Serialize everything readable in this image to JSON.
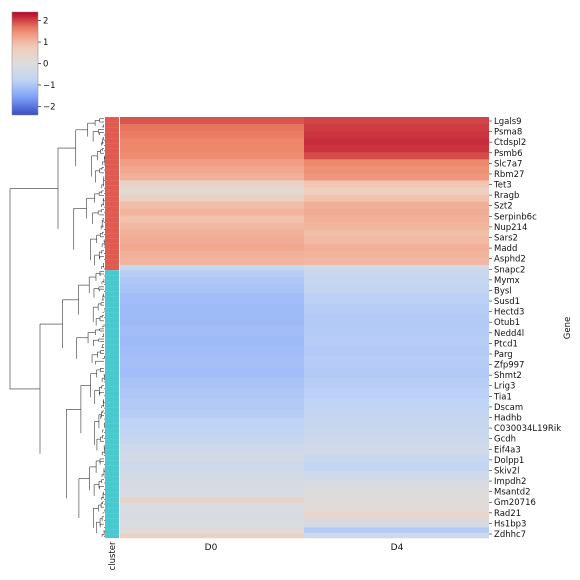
{
  "chart_data": {
    "type": "heatmap",
    "title": "",
    "xlabel": "",
    "ylabel": "Gene",
    "columns": [
      "D0",
      "D4"
    ],
    "annotation_label": "cluster",
    "cluster_colors": [
      "#e05a4f",
      "#47c9cf"
    ],
    "cluster_boundary_fraction": 0.364,
    "colorbar": {
      "vmin": -2.4,
      "vmax": 2.4,
      "ticks": [
        2,
        1,
        0,
        -1,
        -2
      ],
      "tick_labels": [
        "2",
        "1",
        "0",
        "−1",
        "−2"
      ],
      "cmap": "coolwarm",
      "colors": [
        "#3b4cc0",
        "#7b9ff9",
        "#c0d4f5",
        "#dddddd",
        "#f2cbb7",
        "#ee8468",
        "#b40426"
      ]
    },
    "gene_labels": [
      "Lgals9",
      "Psma8",
      "Ctdspl2",
      "Psmb6",
      "Slc7a7",
      "Rbm27",
      "Tet3",
      "Rragb",
      "Szt2",
      "Serpinb6c",
      "Nup214",
      "Sars2",
      "Madd",
      "Asphd2",
      "Snapc2",
      "Mymx",
      "Bysl",
      "Susd1",
      "Hectd3",
      "Otub1",
      "Nedd4l",
      "Ptcd1",
      "Parg",
      "Zfp997",
      "Shmt2",
      "Lrig3",
      "Tia1",
      "Dscam",
      "Hadhb",
      "C030034L19Rik",
      "Gcdh",
      "Eif4a3",
      "Dolpp1",
      "Skiv2l",
      "Impdh2",
      "Msantd2",
      "Gm20716",
      "Rad21",
      "Hs1bp3",
      "Zdhhc7"
    ],
    "row_blocks": [
      {
        "n": 4,
        "d0": 1.9,
        "d4": 2.0
      },
      {
        "n": 4,
        "d0": 1.7,
        "d4": 2.05
      },
      {
        "n": 4,
        "d0": 1.65,
        "d4": 2.1
      },
      {
        "n": 4,
        "d0": 1.6,
        "d4": 2.15
      },
      {
        "n": 4,
        "d0": 1.55,
        "d4": 2.1
      },
      {
        "n": 4,
        "d0": 1.5,
        "d4": 1.95
      },
      {
        "n": 4,
        "d0": 1.3,
        "d4": 1.55
      },
      {
        "n": 4,
        "d0": 1.2,
        "d4": 1.45
      },
      {
        "n": 4,
        "d0": 1.1,
        "d4": 1.4
      },
      {
        "n": 4,
        "d0": 0.45,
        "d4": 0.85
      },
      {
        "n": 4,
        "d0": 0.2,
        "d4": 0.6
      },
      {
        "n": 4,
        "d0": 0.55,
        "d4": 0.9
      },
      {
        "n": 4,
        "d0": 0.95,
        "d4": 1.1
      },
      {
        "n": 4,
        "d0": 1.05,
        "d4": 1.15
      },
      {
        "n": 4,
        "d0": 0.9,
        "d4": 1.1
      },
      {
        "n": 4,
        "d0": 1.0,
        "d4": 1.05
      },
      {
        "n": 4,
        "d0": 1.1,
        "d4": 0.95
      },
      {
        "n": 4,
        "d0": 1.15,
        "d4": 1.0
      },
      {
        "n": 4,
        "d0": 1.2,
        "d4": 1.1
      },
      {
        "n": 4,
        "d0": 1.1,
        "d4": 1.05
      },
      {
        "n": 4,
        "d0": 1.05,
        "d4": 1.0
      },
      {
        "n": 3,
        "d0": -0.6,
        "d4": -0.3
      },
      {
        "n": 4,
        "d0": -0.9,
        "d4": -0.55
      },
      {
        "n": 4,
        "d0": -1.0,
        "d4": -0.65
      },
      {
        "n": 5,
        "d0": -1.05,
        "d4": -0.7
      },
      {
        "n": 6,
        "d0": -1.15,
        "d4": -0.85
      },
      {
        "n": 6,
        "d0": -1.2,
        "d4": -0.9
      },
      {
        "n": 6,
        "d0": -1.2,
        "d4": -0.95
      },
      {
        "n": 6,
        "d0": -1.15,
        "d4": -0.95
      },
      {
        "n": 6,
        "d0": -1.2,
        "d4": -0.9
      },
      {
        "n": 6,
        "d0": -1.15,
        "d4": -0.95
      },
      {
        "n": 6,
        "d0": -1.1,
        "d4": -0.9
      },
      {
        "n": 6,
        "d0": -1.15,
        "d4": -0.95
      },
      {
        "n": 6,
        "d0": -1.05,
        "d4": -0.9
      },
      {
        "n": 6,
        "d0": -1.0,
        "d4": -0.85
      },
      {
        "n": 6,
        "d0": -0.95,
        "d4": -0.8
      },
      {
        "n": 5,
        "d0": -0.9,
        "d4": -0.7
      },
      {
        "n": 5,
        "d0": -0.8,
        "d4": -0.6
      },
      {
        "n": 5,
        "d0": -0.75,
        "d4": -0.55
      },
      {
        "n": 5,
        "d0": -0.6,
        "d4": -0.45
      },
      {
        "n": 5,
        "d0": -0.4,
        "d4": -0.35
      },
      {
        "n": 5,
        "d0": -0.25,
        "d4": -0.55
      },
      {
        "n": 5,
        "d0": -0.45,
        "d4": -0.7
      },
      {
        "n": 5,
        "d0": -0.3,
        "d4": -0.4
      },
      {
        "n": 5,
        "d0": -0.2,
        "d4": -0.15
      },
      {
        "n": 5,
        "d0": -0.15,
        "d4": 0.05
      },
      {
        "n": 3,
        "d0": 0.45,
        "d4": 0.1
      },
      {
        "n": 5,
        "d0": -0.1,
        "d4": 0.15
      },
      {
        "n": 5,
        "d0": -0.15,
        "d4": 0.3
      },
      {
        "n": 4,
        "d0": -0.05,
        "d4": -0.2
      },
      {
        "n": 3,
        "d0": 0.05,
        "d4": -0.95
      },
      {
        "n": 3,
        "d0": 0.5,
        "d4": -0.4
      }
    ]
  }
}
